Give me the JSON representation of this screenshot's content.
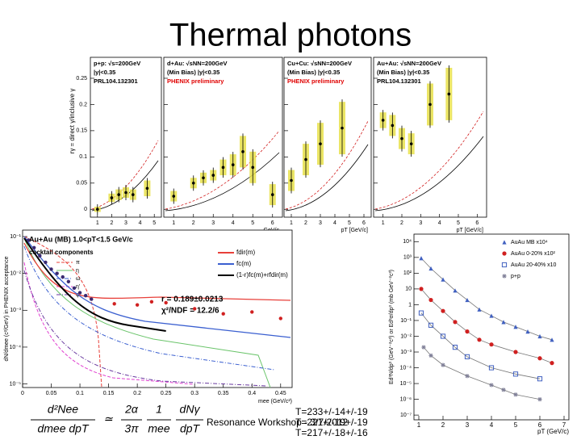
{
  "title": "Thermal photons",
  "photon_ratio": {
    "y_label": "rγ = direct γ/inclusive γ",
    "ylim": [
      -0.015,
      0.29
    ],
    "yticks": [
      0,
      0.05,
      0.1,
      0.15,
      0.2,
      0.25
    ],
    "panels": [
      {
        "labels": [
          "p+p: √s=200GeV",
          "|y|<0.35",
          "PRL104.132301"
        ],
        "xlim": [
          0.5,
          5.5
        ],
        "xticks": [
          1,
          2,
          3,
          4,
          5
        ],
        "points": [
          [
            1,
            0,
            0.005
          ],
          [
            2,
            0.022,
            0.008
          ],
          [
            2.5,
            0.028,
            0.01
          ],
          [
            3,
            0.032,
            0.01
          ],
          [
            3.5,
            0.028,
            0.01
          ],
          [
            4.5,
            0.04,
            0.015
          ]
        ]
      },
      {
        "labels": [
          "d+Au: √sNN=200GeV",
          "(Min Bias)  |y|<0.35",
          "PHENIX preliminary"
        ],
        "note_color": "#e00000",
        "x_label": "GeV/c",
        "xlim": [
          0.5,
          6.5
        ],
        "xticks": [
          1,
          2,
          3,
          4,
          5,
          6
        ],
        "points": [
          [
            1,
            0.025,
            0.01
          ],
          [
            2,
            0.05,
            0.01
          ],
          [
            2.5,
            0.06,
            0.01
          ],
          [
            3,
            0.065,
            0.01
          ],
          [
            3.5,
            0.08,
            0.015
          ],
          [
            4,
            0.085,
            0.02
          ],
          [
            4.5,
            0.11,
            0.03
          ],
          [
            5,
            0.08,
            0.03
          ],
          [
            6,
            0.028,
            0.02
          ]
        ]
      },
      {
        "labels": [
          "Cu+Cu: √sNN=200GeV",
          "(Min Bias)  |y|<0.35",
          "PHENIX preliminary"
        ],
        "note_color": "#e00000",
        "x_label": "pT [GeV/c]",
        "xlim": [
          0.5,
          6.5
        ],
        "xticks": [
          1,
          2,
          3,
          4,
          5,
          6
        ],
        "points": [
          [
            1,
            0.055,
            0.02
          ],
          [
            2,
            0.095,
            0.03
          ],
          [
            3,
            0.125,
            0.04
          ],
          [
            4.5,
            0.155,
            0.05
          ]
        ]
      },
      {
        "labels": [
          "Au+Au: √sNN=200GeV",
          "(Min Bias)  |y|<0.35",
          "PRL104.132301"
        ],
        "x_label": "pT [GeV/c]",
        "xlim": [
          0.5,
          6.5
        ],
        "xticks": [
          1,
          2,
          3,
          4,
          5,
          6
        ],
        "points": [
          [
            1,
            0.17,
            0.015
          ],
          [
            1.5,
            0.16,
            0.02
          ],
          [
            2,
            0.135,
            0.02
          ],
          [
            2.5,
            0.125,
            0.02
          ],
          [
            3.5,
            0.2,
            0.04
          ],
          [
            4.5,
            0.22,
            0.05
          ]
        ]
      }
    ]
  },
  "dilepton": {
    "title": "Au+Au (MB) 1.0<pT<1.5 GeV/c",
    "cocktail_label": "cocktail components",
    "components": [
      {
        "name": "π",
        "color": "#e8403a",
        "dash": "dashed"
      },
      {
        "name": "η",
        "color": "#6ac46a",
        "dash": "solid"
      },
      {
        "name": "ω",
        "color": "#3a5fd0",
        "dash": "dashdot"
      },
      {
        "name": "η'",
        "color": "#e040d0",
        "dash": "dashed"
      },
      {
        "name": "φ",
        "color": "#6a3aa0",
        "dash": "dashdot"
      }
    ],
    "fits": [
      {
        "name": "fdir(m)",
        "color": "#e8403a"
      },
      {
        "name": "fc(m)",
        "color": "#3a5fd0"
      },
      {
        "name": "(1-r)fc(m)+rfdir(m)",
        "color": "#000000"
      }
    ],
    "r": "r = 0.189±0.0213",
    "chi2": "χ²/NDF = 12.2/6",
    "y_label": "dN/dmee (c²/GeV) in PHENIX acceptance",
    "x_label": "mee (GeV/c²)",
    "xlim": [
      0,
      0.47
    ],
    "xticks": [
      0,
      0.05,
      0.1,
      0.15,
      0.2,
      0.25,
      0.3,
      0.35,
      0.4,
      0.45
    ],
    "log_y": true,
    "ylim": [
      8e-06,
      0.15
    ],
    "yticks": [
      {
        "value": 0.1,
        "label": "10⁻¹"
      },
      {
        "value": 0.01,
        "label": "10⁻²"
      },
      {
        "value": 0.001,
        "label": "10⁻³"
      },
      {
        "value": 0.0001,
        "label": "10⁻⁴"
      },
      {
        "value": 1e-05,
        "label": "10⁻⁵"
      }
    ],
    "series": [
      {
        "color": "#3a2a70",
        "points": [
          [
            0.01,
            0.08
          ],
          [
            0.02,
            0.05
          ],
          [
            0.03,
            0.03
          ],
          [
            0.04,
            0.02
          ],
          [
            0.05,
            0.013
          ],
          [
            0.06,
            0.01
          ],
          [
            0.07,
            0.008
          ],
          [
            0.08,
            0.006
          ],
          [
            0.09,
            0.004
          ],
          [
            0.1,
            0.003
          ],
          [
            0.11,
            0.0025
          ],
          [
            0.12,
            0.002
          ]
        ]
      },
      {
        "color": "#d02020",
        "points": [
          [
            0.16,
            0.0015
          ],
          [
            0.2,
            0.0014
          ],
          [
            0.225,
            0.0017
          ],
          [
            0.25,
            0.0016
          ],
          [
            0.3,
            0.0011
          ],
          [
            0.35,
            0.0008
          ],
          [
            0.4,
            0.0009
          ],
          [
            0.45,
            0.0006
          ]
        ]
      }
    ]
  },
  "spectra": {
    "y_label": "Ed³N/dp³ (GeV⁻²c³) or Ed³σ/dp³ (mb GeV⁻²c³)",
    "x_label": "pT (GeV/c)",
    "xlim": [
      0.8,
      7.2
    ],
    "xticks": [
      1,
      2,
      3,
      4,
      5,
      6,
      7
    ],
    "log_y": true,
    "ylim": [
      5e-08,
      30000
    ],
    "yticks": [
      {
        "value": 10000,
        "label": "10⁴"
      },
      {
        "value": 1000,
        "label": "10³"
      },
      {
        "value": 100,
        "label": "10²"
      },
      {
        "value": 10,
        "label": "10"
      },
      {
        "value": 1,
        "label": "1"
      },
      {
        "value": 0.1,
        "label": "10⁻¹"
      },
      {
        "value": 0.01,
        "label": "10⁻²"
      },
      {
        "value": 0.001,
        "label": "10⁻³"
      },
      {
        "value": 0.0001,
        "label": "10⁻⁴"
      },
      {
        "value": 1e-05,
        "label": "10⁻⁵"
      },
      {
        "value": 1e-06,
        "label": "10⁻⁶"
      },
      {
        "value": 1e-07,
        "label": "10⁻⁷"
      }
    ],
    "series": [
      {
        "name": "AuAu MB x10⁴",
        "color": "#4060c0",
        "marker": "triangle",
        "points": [
          [
            1.1,
            900
          ],
          [
            1.5,
            200
          ],
          [
            2,
            40
          ],
          [
            2.5,
            8
          ],
          [
            3,
            2
          ],
          [
            3.5,
            0.5
          ],
          [
            4,
            0.2
          ],
          [
            4.5,
            0.08
          ],
          [
            5,
            0.04
          ],
          [
            5.5,
            0.02
          ],
          [
            6,
            0.01
          ],
          [
            6.5,
            0.006
          ]
        ]
      },
      {
        "name": "AuAu 0-20% x10²",
        "color": "#d02020",
        "marker": "circle",
        "points": [
          [
            1.1,
            10
          ],
          [
            1.5,
            2
          ],
          [
            2,
            0.4
          ],
          [
            2.5,
            0.08
          ],
          [
            3,
            0.02
          ],
          [
            3.5,
            0.006
          ],
          [
            4,
            0.003
          ],
          [
            5,
            0.001
          ],
          [
            6,
            0.0004
          ],
          [
            6.5,
            0.0002
          ]
        ]
      },
      {
        "name": "AuAu 20-40% x10",
        "color": "#4060c0",
        "marker": "square",
        "points": [
          [
            1.1,
            0.3
          ],
          [
            1.5,
            0.05
          ],
          [
            2,
            0.01
          ],
          [
            2.5,
            0.002
          ],
          [
            3,
            0.0005
          ],
          [
            4,
            0.0001
          ],
          [
            5,
            4e-05
          ],
          [
            6,
            2e-05
          ]
        ]
      },
      {
        "name": "p+p",
        "color": "#808098",
        "marker": "star",
        "points": [
          [
            1.2,
            0.002
          ],
          [
            1.5,
            0.0006
          ],
          [
            2,
            0.00015
          ],
          [
            3,
            3e-05
          ],
          [
            4,
            8e-06
          ],
          [
            4.5,
            4e-06
          ],
          [
            5,
            2e-06
          ],
          [
            6,
            1e-06
          ]
        ]
      }
    ]
  },
  "formula": {
    "lhs_num": "d²Nee",
    "lhs_den": "dmee dpT",
    "relation": "≃",
    "c_num": "2α",
    "c_den": "3π",
    "m_num": "1",
    "m_den": "mee",
    "r_num": "dNγ",
    "r_den": "dpT"
  },
  "temperatures": [
    "T=233+/-14+/-19",
    "T=221+/-19+/-19",
    "T=217+/-18+/-16"
  ],
  "footer": "Resonance Workshop - 3/7/2012"
}
